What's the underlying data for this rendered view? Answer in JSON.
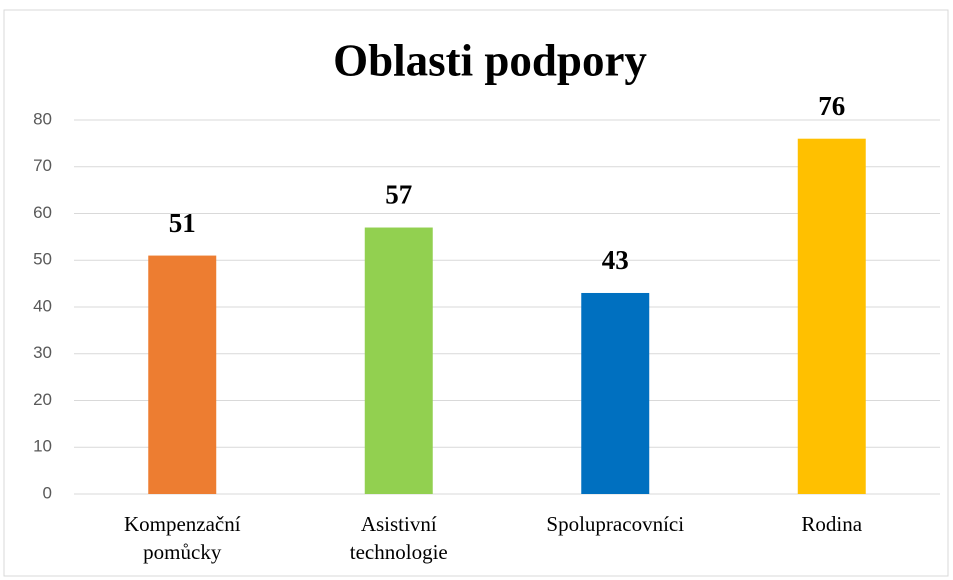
{
  "chart_data": {
    "type": "bar",
    "title": "Oblasti podpory",
    "categories": [
      "Kompenzační pomůcky",
      "Asistivní technologie",
      "Spolupracovníci",
      "Rodina"
    ],
    "values": [
      51,
      57,
      43,
      76
    ],
    "colors": [
      "#ED7D31",
      "#92D050",
      "#0070C0",
      "#FFC000"
    ],
    "ylim": [
      0,
      80
    ],
    "yticks": [
      0,
      10,
      20,
      30,
      40,
      50,
      60,
      70,
      80
    ],
    "grid": true
  }
}
